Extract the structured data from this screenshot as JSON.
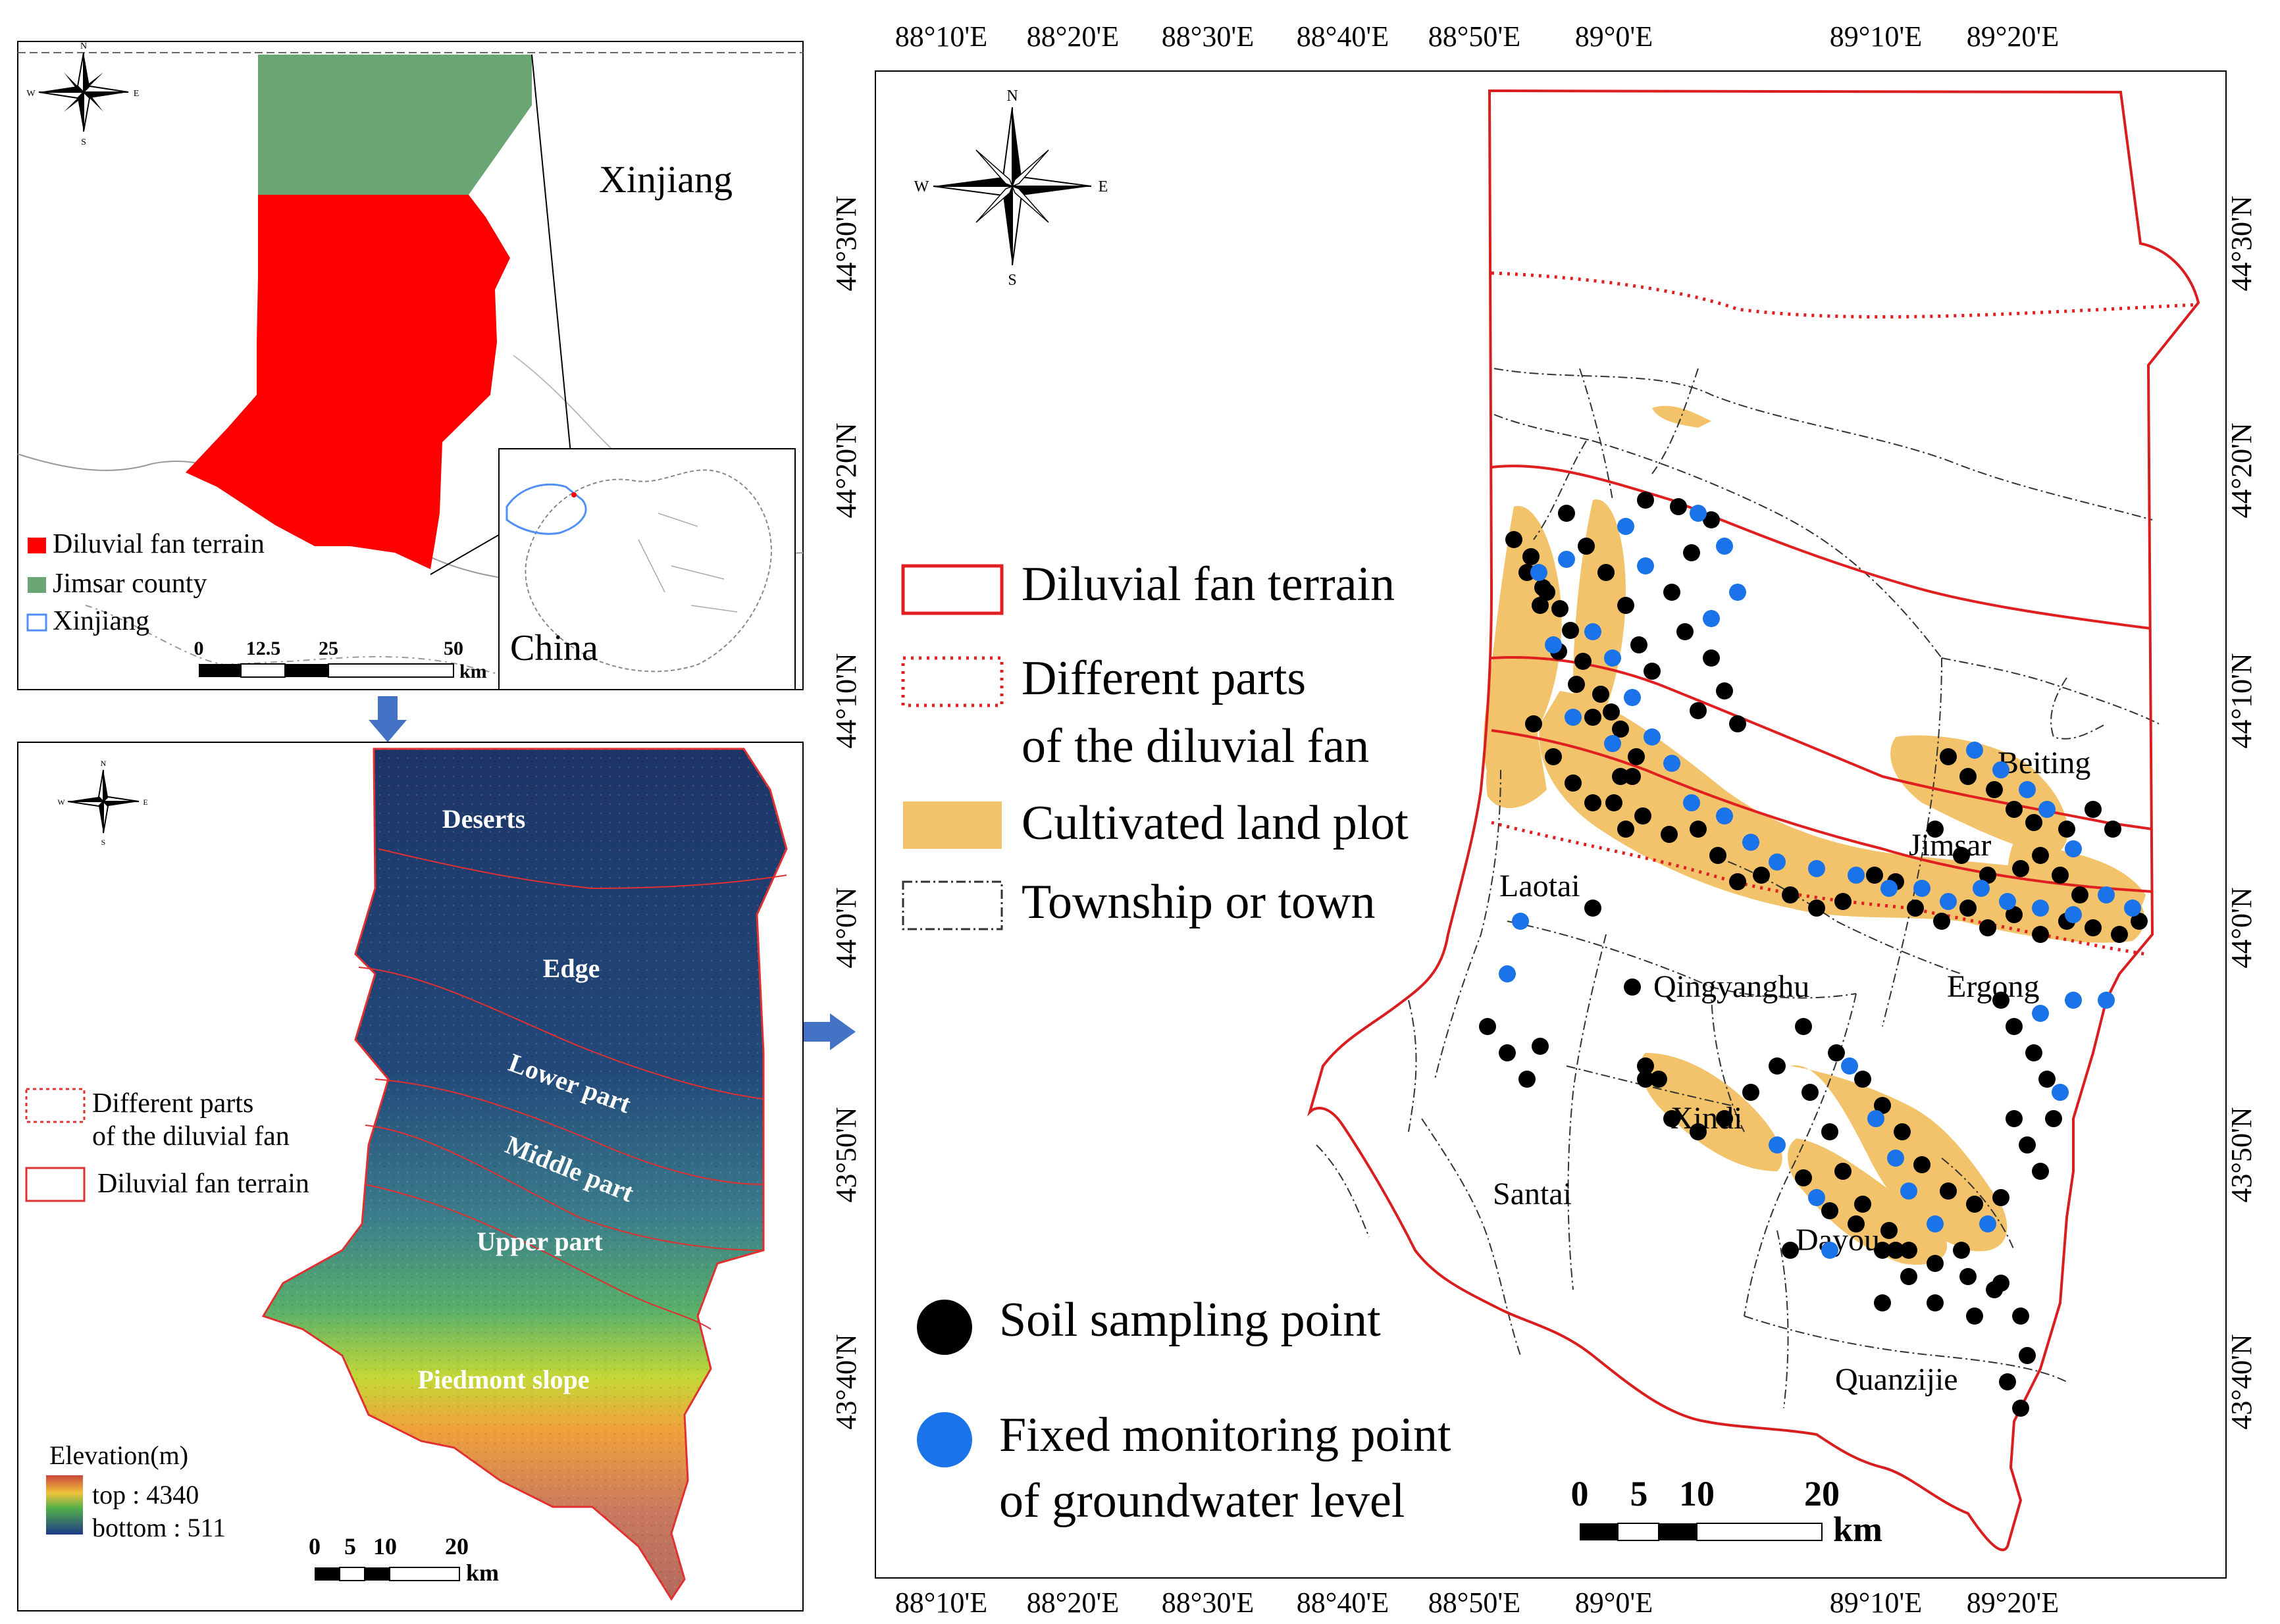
{
  "panel_a": {
    "region_label": "Xinjiang",
    "country_label": "China",
    "compass": {
      "n": "N",
      "s": "S",
      "w": "W",
      "e": "E"
    },
    "legend": [
      {
        "label": "Diluvial fan terrain",
        "color": "#ff0000"
      },
      {
        "label": "Jimsar county",
        "color": "#6aa673"
      },
      {
        "label": "Xinjiang",
        "color": "#4f8ff7"
      }
    ],
    "scale_ticks": [
      "0",
      "12.5",
      "25",
      "50"
    ],
    "scale_unit": "km"
  },
  "panel_b": {
    "compass": {
      "n": "N",
      "s": "S",
      "w": "W",
      "e": "E"
    },
    "zones": [
      "Deserts",
      "Edge",
      "Lower part",
      "Middle part",
      "Upper part",
      "Piedmont slope"
    ],
    "legend": [
      {
        "label": "Different parts",
        "label2": "of the diluvial fan"
      },
      {
        "label": "Diluvial fan terrain"
      }
    ],
    "elevation": {
      "title": "Elevation(m)",
      "top": "top : 4340",
      "bottom": "bottom : 511"
    },
    "scale_ticks": [
      "0",
      "5",
      "10",
      "20"
    ],
    "scale_unit": "km"
  },
  "panel_c": {
    "lon_labels": [
      "88°10'E",
      "88°20'E",
      "88°30'E",
      "88°40'E",
      "88°50'E",
      "89°0'E",
      "89°10'E",
      "89°20'E"
    ],
    "lat_labels": [
      "44°30'N",
      "44°20'N",
      "44°10'N",
      "44°0'N",
      "43°50'N",
      "43°40'N"
    ],
    "compass": {
      "n": "N",
      "s": "S",
      "w": "W",
      "e": "E"
    },
    "legend": [
      {
        "label": "Diluvial fan terrain"
      },
      {
        "label": "Different parts",
        "label2": "of the diluvial fan"
      },
      {
        "label": "Cultivated land plot",
        "color": "#f2c36b"
      },
      {
        "label": "Township or town"
      }
    ],
    "point_legend": [
      {
        "label": "Soil sampling point",
        "color": "#000000"
      },
      {
        "label": "Fixed monitoring point",
        "label2": "of groundwater level",
        "color": "#1a73e8"
      }
    ],
    "towns": [
      "Beiting",
      "Jimsar",
      "Laotai",
      "Qingyanghu",
      "Ergong",
      "Xindi",
      "Santai",
      "Dayou",
      "Quanzijie"
    ],
    "scale_ticks": [
      "0",
      "5",
      "10",
      "20"
    ],
    "scale_unit": "km"
  }
}
